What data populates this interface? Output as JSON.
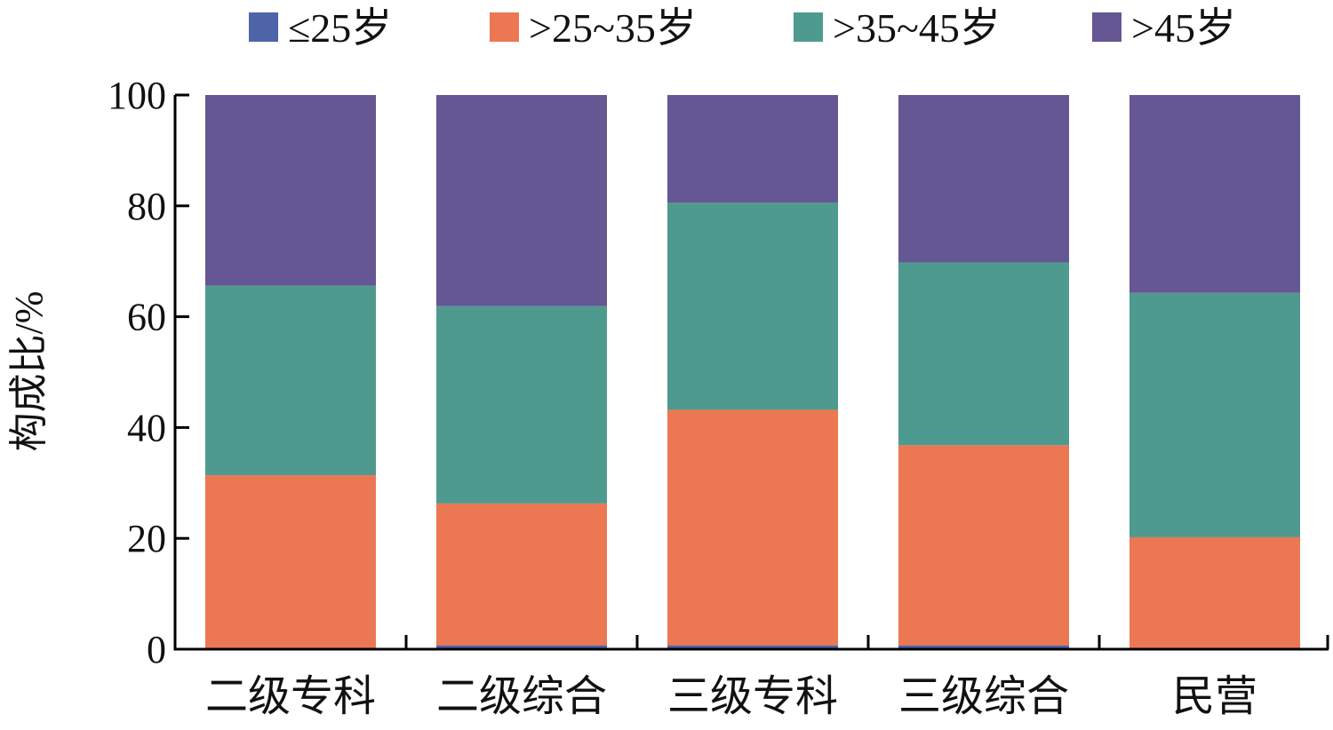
{
  "chart_data": {
    "type": "bar",
    "stacked": true,
    "categories": [
      "二级专科",
      "二级综合",
      "三级专科",
      "三级综合",
      "民营"
    ],
    "series": [
      {
        "name": "≤25岁",
        "color": "#4e64a8",
        "values": [
          0.0,
          0.7,
          0.7,
          0.7,
          0.0
        ]
      },
      {
        "name": ">25~35岁",
        "color": "#ec7753",
        "values": [
          31.4,
          25.6,
          42.5,
          36.1,
          20.2
        ]
      },
      {
        "name": ">35~45岁",
        "color": "#4f9a8f",
        "values": [
          34.2,
          35.6,
          37.4,
          33.0,
          44.1
        ]
      },
      {
        "name": ">45岁",
        "color": "#655694",
        "values": [
          34.4,
          38.1,
          19.4,
          30.2,
          35.7
        ]
      }
    ],
    "title": "",
    "xlabel": "",
    "ylabel": "构成比/%",
    "ylim": [
      0,
      100
    ],
    "yticks": [
      0,
      20,
      40,
      60,
      80,
      100
    ],
    "legend_position": "top",
    "grid": false
  }
}
